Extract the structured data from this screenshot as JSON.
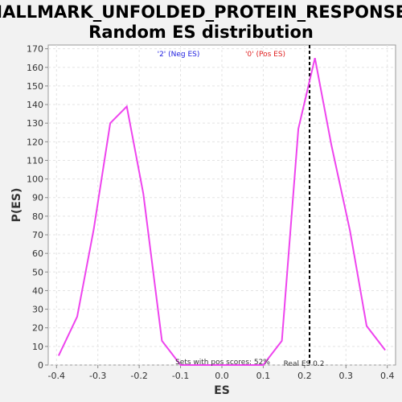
{
  "chart_data": {
    "type": "line",
    "title": [
      "HALLMARK_UNFOLDED_PROTEIN_RESPONSE:",
      "Random ES distribution"
    ],
    "xlabel": "ES",
    "ylabel": "P(ES)",
    "xlim": [
      -0.42,
      0.42
    ],
    "ylim": [
      0,
      172
    ],
    "x_ticks": [
      -0.4,
      -0.3,
      -0.2,
      -0.1,
      0.0,
      0.1,
      0.2,
      0.3,
      0.4
    ],
    "x_tick_labels": [
      "-0.4",
      "-0.3",
      "-0.2",
      "-0.1",
      "0.0",
      "0.1",
      "0.2",
      "0.3",
      "0.4"
    ],
    "y_ticks": [
      0,
      10,
      20,
      30,
      40,
      50,
      60,
      70,
      80,
      90,
      100,
      110,
      120,
      130,
      140,
      150,
      160,
      170
    ],
    "grid": true,
    "series": [
      {
        "color": "#ee44ee",
        "x": [
          -0.395,
          -0.35,
          -0.31,
          -0.27,
          -0.23,
          -0.19,
          -0.145,
          -0.1,
          -0.06,
          -0.02,
          0.02,
          0.06,
          0.1,
          0.145,
          0.185,
          0.225,
          0.265,
          0.31,
          0.35,
          0.395
        ],
        "y": [
          5,
          26,
          73,
          130,
          139,
          92,
          13,
          0,
          0,
          0,
          0,
          0,
          0,
          13,
          127,
          165,
          118,
          72,
          21,
          8
        ]
      }
    ],
    "real_es": 0.212,
    "legend": {
      "neg": "'2' (Neg ES)",
      "pos": "'0' (Pos ES)"
    },
    "annotations": {
      "pos_scores": "Sets with pos scores: 52%",
      "real_es": "Real ES 0.2"
    }
  }
}
